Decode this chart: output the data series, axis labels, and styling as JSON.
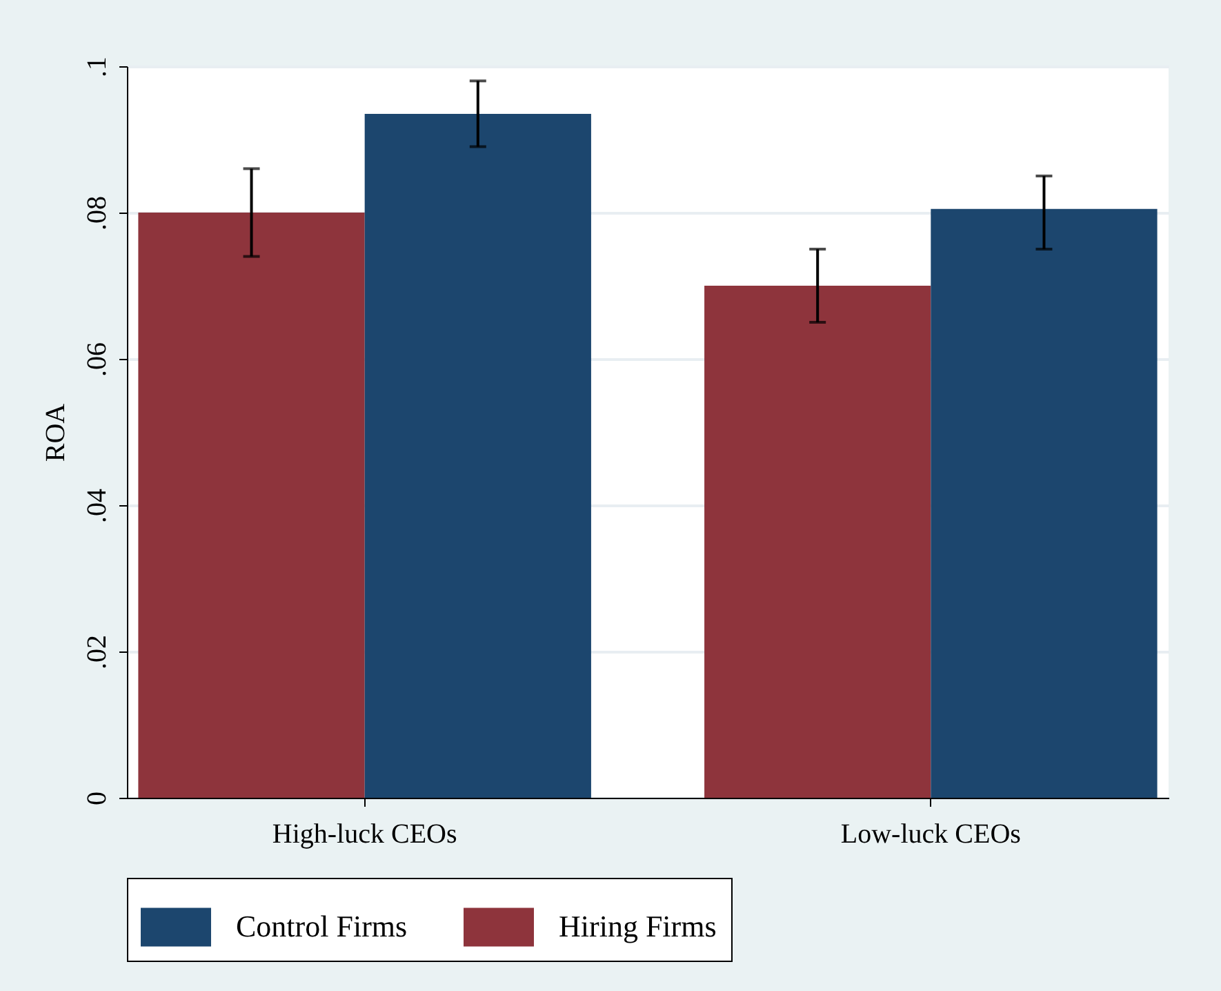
{
  "chart_data": {
    "type": "bar",
    "ylabel": "ROA",
    "categories": [
      "High-luck CEOs",
      "Low-luck CEOs"
    ],
    "series": [
      {
        "name": "Hiring Firms",
        "color": "#8e343c",
        "values": [
          0.08,
          0.07
        ],
        "errors": [
          [
            0.074,
            0.086
          ],
          [
            0.065,
            0.075
          ]
        ]
      },
      {
        "name": "Control Firms",
        "color": "#1c466e",
        "values": [
          0.0935,
          0.0805
        ],
        "errors": [
          [
            0.089,
            0.098
          ],
          [
            0.075,
            0.085
          ]
        ]
      }
    ],
    "ylim": [
      0,
      0.1
    ],
    "yticks": [
      {
        "value": 0,
        "label": "0"
      },
      {
        "value": 0.02,
        "label": ".02"
      },
      {
        "value": 0.04,
        "label": ".04"
      },
      {
        "value": 0.06,
        "label": ".06"
      },
      {
        "value": 0.08,
        "label": ".08"
      },
      {
        "value": 0.1,
        "label": ".1"
      }
    ],
    "grid": "y",
    "legend": "bottom"
  }
}
